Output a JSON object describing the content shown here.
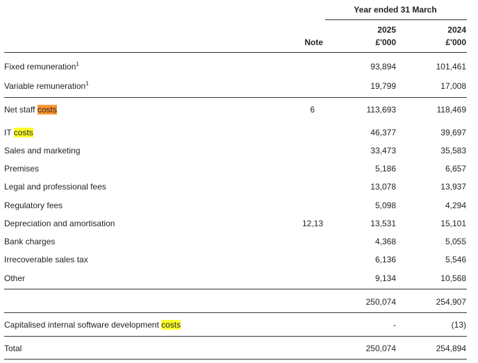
{
  "header": {
    "period_label": "Year ended 31 March",
    "note_label": "Note",
    "year_current": "2025",
    "year_prior": "2024",
    "unit_current": "£'000",
    "unit_prior": "£'000"
  },
  "search_term": "costs",
  "rows": {
    "fixed_remuneration": {
      "label": "Fixed remuneration",
      "sup": "1",
      "note": "",
      "current": "93,894",
      "prior": "101,461"
    },
    "variable_remuneration": {
      "label": "Variable remuneration",
      "sup": "1",
      "note": "",
      "current": "19,799",
      "prior": "17,008"
    },
    "net_staff_costs": {
      "label_prefix": "Net staff ",
      "label_match": "costs",
      "note": "6",
      "current": "113,693",
      "prior": "118,469"
    },
    "it_costs": {
      "label_prefix": "IT ",
      "label_match": "costs",
      "note": "",
      "current": "46,377",
      "prior": "39,697"
    },
    "sales_marketing": {
      "label": "Sales and marketing",
      "note": "",
      "current": "33,473",
      "prior": "35,583"
    },
    "premises": {
      "label": "Premises",
      "note": "",
      "current": "5,186",
      "prior": "6,657"
    },
    "legal_fees": {
      "label": "Legal and professional fees",
      "note": "",
      "current": "13,078",
      "prior": "13,937"
    },
    "regulatory_fees": {
      "label": "Regulatory fees",
      "note": "",
      "current": "5,098",
      "prior": "4,294"
    },
    "depreciation": {
      "label": "Depreciation and amortisation",
      "note": "12,13",
      "current": "13,531",
      "prior": "15,101"
    },
    "bank_charges": {
      "label": "Bank charges",
      "note": "",
      "current": "4,368",
      "prior": "5,055"
    },
    "sales_tax": {
      "label": "Irrecoverable sales tax",
      "note": "",
      "current": "6,136",
      "prior": "5,546"
    },
    "other": {
      "label": "Other",
      "note": "",
      "current": "9,134",
      "prior": "10,568"
    },
    "subtotal": {
      "label": "",
      "note": "",
      "current": "250,074",
      "prior": "254,907"
    },
    "capitalised": {
      "label_prefix": "Capitalised internal software development ",
      "label_match": "costs",
      "note": "",
      "current": "-",
      "prior": "(13)"
    },
    "total": {
      "label": "Total",
      "note": "",
      "current": "250,074",
      "prior": "254,894"
    }
  },
  "colors": {
    "highlight_primary": "#ff9632",
    "highlight_secondary": "#ffff2a",
    "rule": "#333333",
    "text": "#222222"
  }
}
